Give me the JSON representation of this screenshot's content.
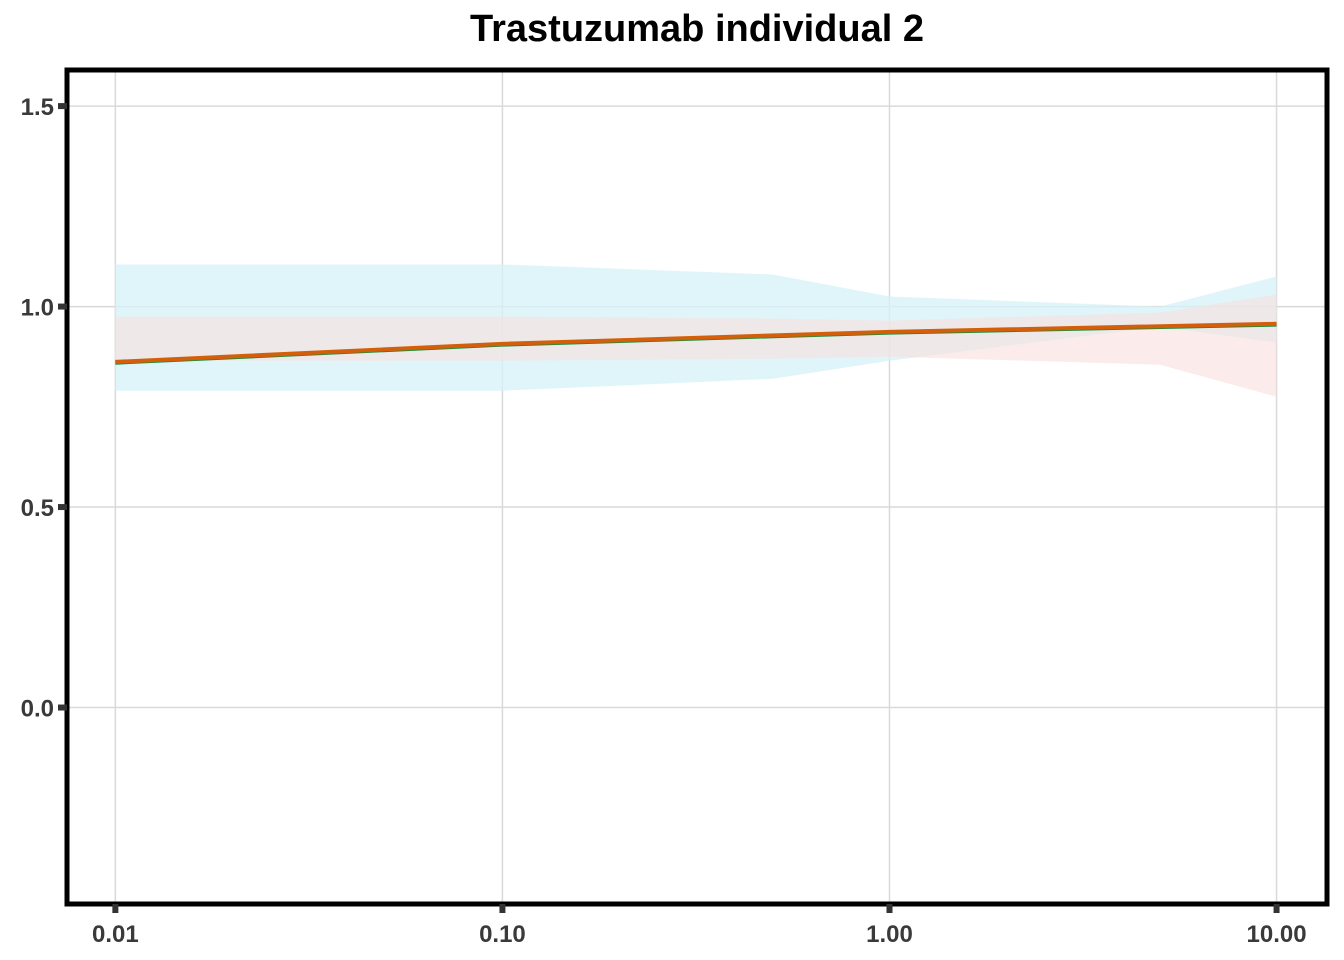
{
  "chart_data": {
    "type": "line",
    "title": "Trastuzumab individual 2",
    "xlabel": "",
    "ylabel": "",
    "x_scale": "log10",
    "xlim": [
      0.0075,
      13.5
    ],
    "ylim": [
      -0.49,
      1.59
    ],
    "x_ticks": [
      0.01,
      0.1,
      1,
      10
    ],
    "x_tick_labels": [
      "0.01",
      "0.10",
      "1.00",
      "10.00"
    ],
    "y_ticks": [
      0,
      0.5,
      1,
      1.5
    ],
    "y_tick_labels": [
      "0.0",
      "0.5",
      "1.0",
      "1.5"
    ],
    "grid": true,
    "legend": "none",
    "bands": [
      {
        "color": "#d5f2f7",
        "opacity": 0.75,
        "x": [
          0.01,
          0.1,
          0.5,
          1,
          5,
          10
        ],
        "upper": [
          1.105,
          1.105,
          1.08,
          1.025,
          1.0,
          1.075
        ],
        "lower": [
          0.79,
          0.79,
          0.82,
          0.865,
          0.95,
          0.91
        ]
      },
      {
        "color": "#f9e0de",
        "opacity": 0.6,
        "x": [
          0.01,
          0.1,
          0.5,
          1,
          5,
          10
        ],
        "upper": [
          0.975,
          0.975,
          0.97,
          0.965,
          0.985,
          1.03
        ],
        "lower": [
          0.865,
          0.865,
          0.87,
          0.875,
          0.855,
          0.775
        ]
      }
    ],
    "series": [
      {
        "color": "#1e8a3a",
        "x": [
          0.01,
          0.1,
          1,
          10
        ],
        "values": [
          0.86,
          0.905,
          0.935,
          0.955
        ]
      },
      {
        "color": "#d35f0a",
        "x": [
          0.01,
          0.1,
          1,
          10
        ],
        "values": [
          0.862,
          0.907,
          0.937,
          0.957
        ]
      }
    ],
    "colors": {
      "grid": "#d9d9d9",
      "frame": "#000000",
      "ticks": "#333333"
    }
  }
}
